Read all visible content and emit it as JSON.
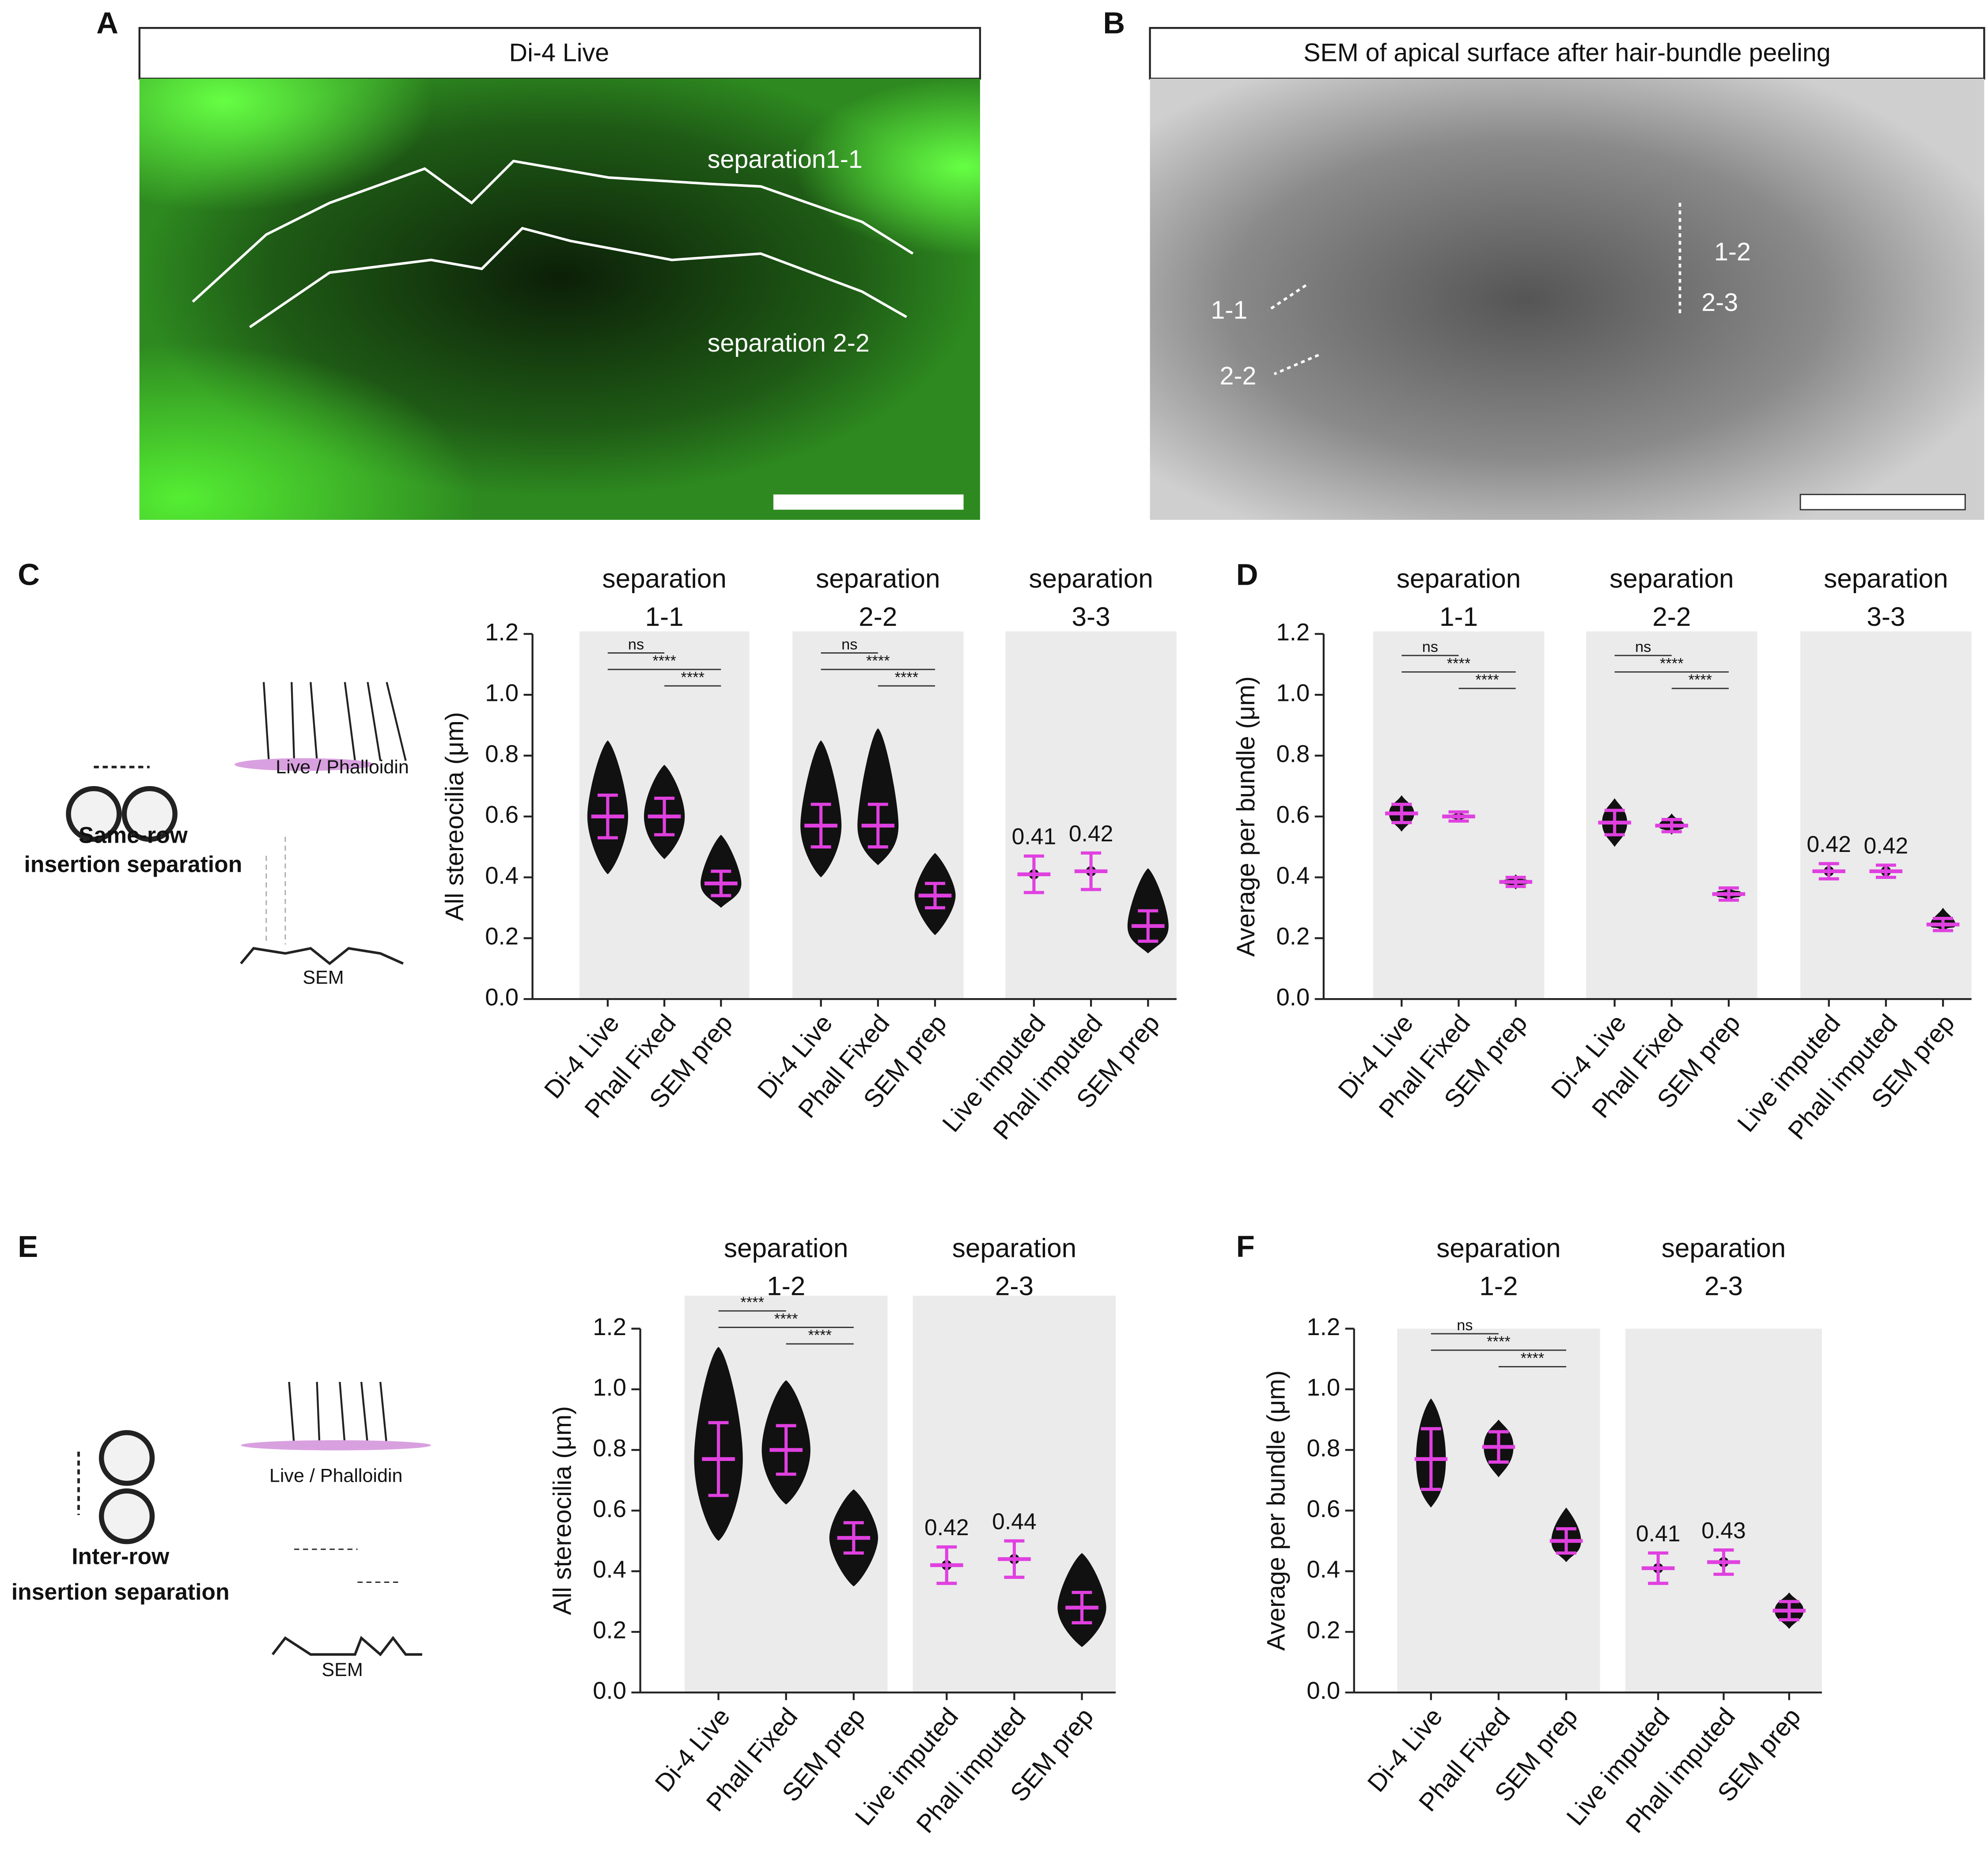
{
  "panel_labels": [
    "A",
    "B",
    "C",
    "D",
    "E",
    "F"
  ],
  "image_a": {
    "title": "Di-4 Live",
    "labels": [
      "separation1-1",
      "separation 2-2"
    ]
  },
  "image_b": {
    "title": "SEM of apical surface after hair-bundle peeling",
    "labels": [
      "1-2",
      "2-3",
      "1-1",
      "2-2"
    ]
  },
  "diagram_c": {
    "caption": [
      "Same-row",
      "insertion separation"
    ],
    "labels": [
      "Live / Phalloidin",
      "SEM"
    ]
  },
  "diagram_e": {
    "caption": [
      "Inter-row",
      "insertion separation"
    ],
    "labels": [
      "Live / Phalloidin",
      "SEM"
    ]
  },
  "chart_data": [
    {
      "type": "dot",
      "ylabel": "All stereocilia (μm)",
      "ylim": [
        0,
        1.2
      ],
      "yticks": [
        {
          "value": 0,
          "label": "0.0"
        },
        {
          "value": 0.2,
          "label": "0.2"
        },
        {
          "value": 0.4,
          "label": "0.4"
        },
        {
          "value": 0.6,
          "label": "0.6"
        },
        {
          "value": 0.8,
          "label": "0.8"
        },
        {
          "value": 1.0,
          "label": "1.0"
        },
        {
          "value": 1.2,
          "label": "1.2"
        }
      ],
      "color": "#e040e0",
      "groups": [
        {
          "title": [
            "separation",
            "1-1"
          ],
          "categories": [
            "Di-4 Live",
            "Phall Fixed",
            "SEM prep"
          ],
          "values": [
            0.6,
            0.6,
            0.38
          ],
          "sd": [
            0.07,
            0.06,
            0.04
          ],
          "min": [
            0.41,
            0.46,
            0.3
          ],
          "max": [
            0.85,
            0.77,
            0.54
          ],
          "value_labels": [
            null,
            null,
            null
          ],
          "significance": [
            {
              "from": 0,
              "to": 1,
              "label": "ns"
            },
            {
              "from": 0,
              "to": 2,
              "label": "****"
            },
            {
              "from": 1,
              "to": 2,
              "label": "****"
            }
          ]
        },
        {
          "title": [
            "separation",
            "2-2"
          ],
          "categories": [
            "Di-4 Live",
            "Phall Fixed",
            "SEM prep"
          ],
          "values": [
            0.57,
            0.57,
            0.34
          ],
          "sd": [
            0.07,
            0.07,
            0.04
          ],
          "min": [
            0.4,
            0.44,
            0.21
          ],
          "max": [
            0.85,
            0.89,
            0.48
          ],
          "value_labels": [
            null,
            null,
            null
          ],
          "significance": [
            {
              "from": 0,
              "to": 1,
              "label": "ns"
            },
            {
              "from": 0,
              "to": 2,
              "label": "****"
            },
            {
              "from": 1,
              "to": 2,
              "label": "****"
            }
          ]
        },
        {
          "title": [
            "separation",
            "3-3"
          ],
          "categories": [
            "Live imputed",
            "Phall imputed",
            "SEM prep"
          ],
          "values": [
            0.41,
            0.42,
            0.24
          ],
          "sd": [
            0.06,
            0.06,
            0.05
          ],
          "min": [
            null,
            null,
            0.15
          ],
          "max": [
            null,
            null,
            0.43
          ],
          "value_labels": [
            "0.41",
            "0.42",
            null
          ],
          "significance": []
        }
      ]
    },
    {
      "type": "dot",
      "ylabel": "Average per bundle (μm)",
      "ylim": [
        0,
        1.2
      ],
      "yticks": [
        {
          "value": 0,
          "label": "0.0"
        },
        {
          "value": 0.2,
          "label": "0.2"
        },
        {
          "value": 0.4,
          "label": "0.4"
        },
        {
          "value": 0.6,
          "label": "0.6"
        },
        {
          "value": 0.8,
          "label": "0.8"
        },
        {
          "value": 1.0,
          "label": "1.0"
        },
        {
          "value": 1.2,
          "label": "1.2"
        }
      ],
      "color": "#e040e0",
      "groups": [
        {
          "title": [
            "separation",
            "1-1"
          ],
          "categories": [
            "Di-4 Live",
            "Phall Fixed",
            "SEM prep"
          ],
          "values": [
            0.61,
            0.6,
            0.385
          ],
          "sd": [
            0.03,
            0.015,
            0.015
          ],
          "min": [
            0.55,
            0.58,
            0.36
          ],
          "max": [
            0.67,
            0.62,
            0.41
          ],
          "value_labels": [
            null,
            null,
            null
          ],
          "significance": [
            {
              "from": 0,
              "to": 1,
              "label": "ns"
            },
            {
              "from": 0,
              "to": 2,
              "label": "****"
            },
            {
              "from": 1,
              "to": 2,
              "label": "****"
            }
          ]
        },
        {
          "title": [
            "separation",
            "2-2"
          ],
          "categories": [
            "Di-4 Live",
            "Phall Fixed",
            "SEM prep"
          ],
          "values": [
            0.58,
            0.57,
            0.345
          ],
          "sd": [
            0.04,
            0.02,
            0.02
          ],
          "min": [
            0.5,
            0.54,
            0.32
          ],
          "max": [
            0.66,
            0.61,
            0.37
          ],
          "value_labels": [
            null,
            null,
            null
          ],
          "significance": [
            {
              "from": 0,
              "to": 1,
              "label": "ns"
            },
            {
              "from": 0,
              "to": 2,
              "label": "****"
            },
            {
              "from": 1,
              "to": 2,
              "label": "****"
            }
          ]
        },
        {
          "title": [
            "separation",
            "3-3"
          ],
          "categories": [
            "Live imputed",
            "Phall imputed",
            "SEM prep"
          ],
          "values": [
            0.42,
            0.42,
            0.245
          ],
          "sd": [
            0.025,
            0.02,
            0.02
          ],
          "min": [
            null,
            null,
            0.22
          ],
          "max": [
            null,
            null,
            0.3
          ],
          "value_labels": [
            "0.42",
            "0.42",
            null
          ],
          "significance": []
        }
      ]
    },
    {
      "type": "dot",
      "ylabel": "All stereocilia (μm)",
      "ylim": [
        0,
        1.2
      ],
      "yticks": [
        {
          "value": 0,
          "label": "0.0"
        },
        {
          "value": 0.2,
          "label": "0.2"
        },
        {
          "value": 0.4,
          "label": "0.4"
        },
        {
          "value": 0.6,
          "label": "0.6"
        },
        {
          "value": 0.8,
          "label": "0.8"
        },
        {
          "value": 1.0,
          "label": "1.0"
        },
        {
          "value": 1.2,
          "label": "1.2"
        }
      ],
      "color": "#e040e0",
      "groups": [
        {
          "title": [
            "separation",
            "1-2"
          ],
          "categories": [
            "Di-4 Live",
            "Phall Fixed",
            "SEM prep"
          ],
          "values": [
            0.77,
            0.8,
            0.51
          ],
          "sd": [
            0.12,
            0.08,
            0.05
          ],
          "min": [
            0.5,
            0.62,
            0.35
          ],
          "max": [
            1.14,
            1.03,
            0.67
          ],
          "value_labels": [
            null,
            null,
            null
          ],
          "significance": [
            {
              "from": 0,
              "to": 1,
              "label": "****"
            },
            {
              "from": 0,
              "to": 2,
              "label": "****"
            },
            {
              "from": 1,
              "to": 2,
              "label": "****"
            }
          ]
        },
        {
          "title": [
            "separation",
            "2-3"
          ],
          "categories": [
            "Live imputed",
            "Phall imputed",
            "SEM prep"
          ],
          "values": [
            0.42,
            0.44,
            0.28
          ],
          "sd": [
            0.06,
            0.06,
            0.05
          ],
          "min": [
            null,
            null,
            0.15
          ],
          "max": [
            null,
            null,
            0.46
          ],
          "value_labels": [
            "0.42",
            "0.44",
            null
          ],
          "significance": []
        }
      ]
    },
    {
      "type": "dot",
      "ylabel": "Average per bundle (μm)",
      "ylim": [
        0,
        1.2
      ],
      "yticks": [
        {
          "value": 0,
          "label": "0.0"
        },
        {
          "value": 0.2,
          "label": "0.2"
        },
        {
          "value": 0.4,
          "label": "0.4"
        },
        {
          "value": 0.6,
          "label": "0.6"
        },
        {
          "value": 0.8,
          "label": "0.8"
        },
        {
          "value": 1.0,
          "label": "1.0"
        },
        {
          "value": 1.2,
          "label": "1.2"
        }
      ],
      "color": "#e040e0",
      "groups": [
        {
          "title": [
            "separation",
            "1-2"
          ],
          "categories": [
            "Di-4 Live",
            "Phall Fixed",
            "SEM prep"
          ],
          "values": [
            0.77,
            0.81,
            0.5
          ],
          "sd": [
            0.1,
            0.05,
            0.04
          ],
          "min": [
            0.61,
            0.71,
            0.43
          ],
          "max": [
            0.97,
            0.9,
            0.61
          ],
          "value_labels": [
            null,
            null,
            null
          ],
          "significance": [
            {
              "from": 0,
              "to": 1,
              "label": "ns"
            },
            {
              "from": 0,
              "to": 2,
              "label": "****"
            },
            {
              "from": 1,
              "to": 2,
              "label": "****"
            }
          ]
        },
        {
          "title": [
            "separation",
            "2-3"
          ],
          "categories": [
            "Live imputed",
            "Phall imputed",
            "SEM prep"
          ],
          "values": [
            0.41,
            0.43,
            0.27
          ],
          "sd": [
            0.05,
            0.04,
            0.03
          ],
          "min": [
            null,
            null,
            0.21
          ],
          "max": [
            null,
            null,
            0.33
          ],
          "value_labels": [
            "0.41",
            "0.43",
            null
          ],
          "significance": []
        }
      ]
    }
  ]
}
